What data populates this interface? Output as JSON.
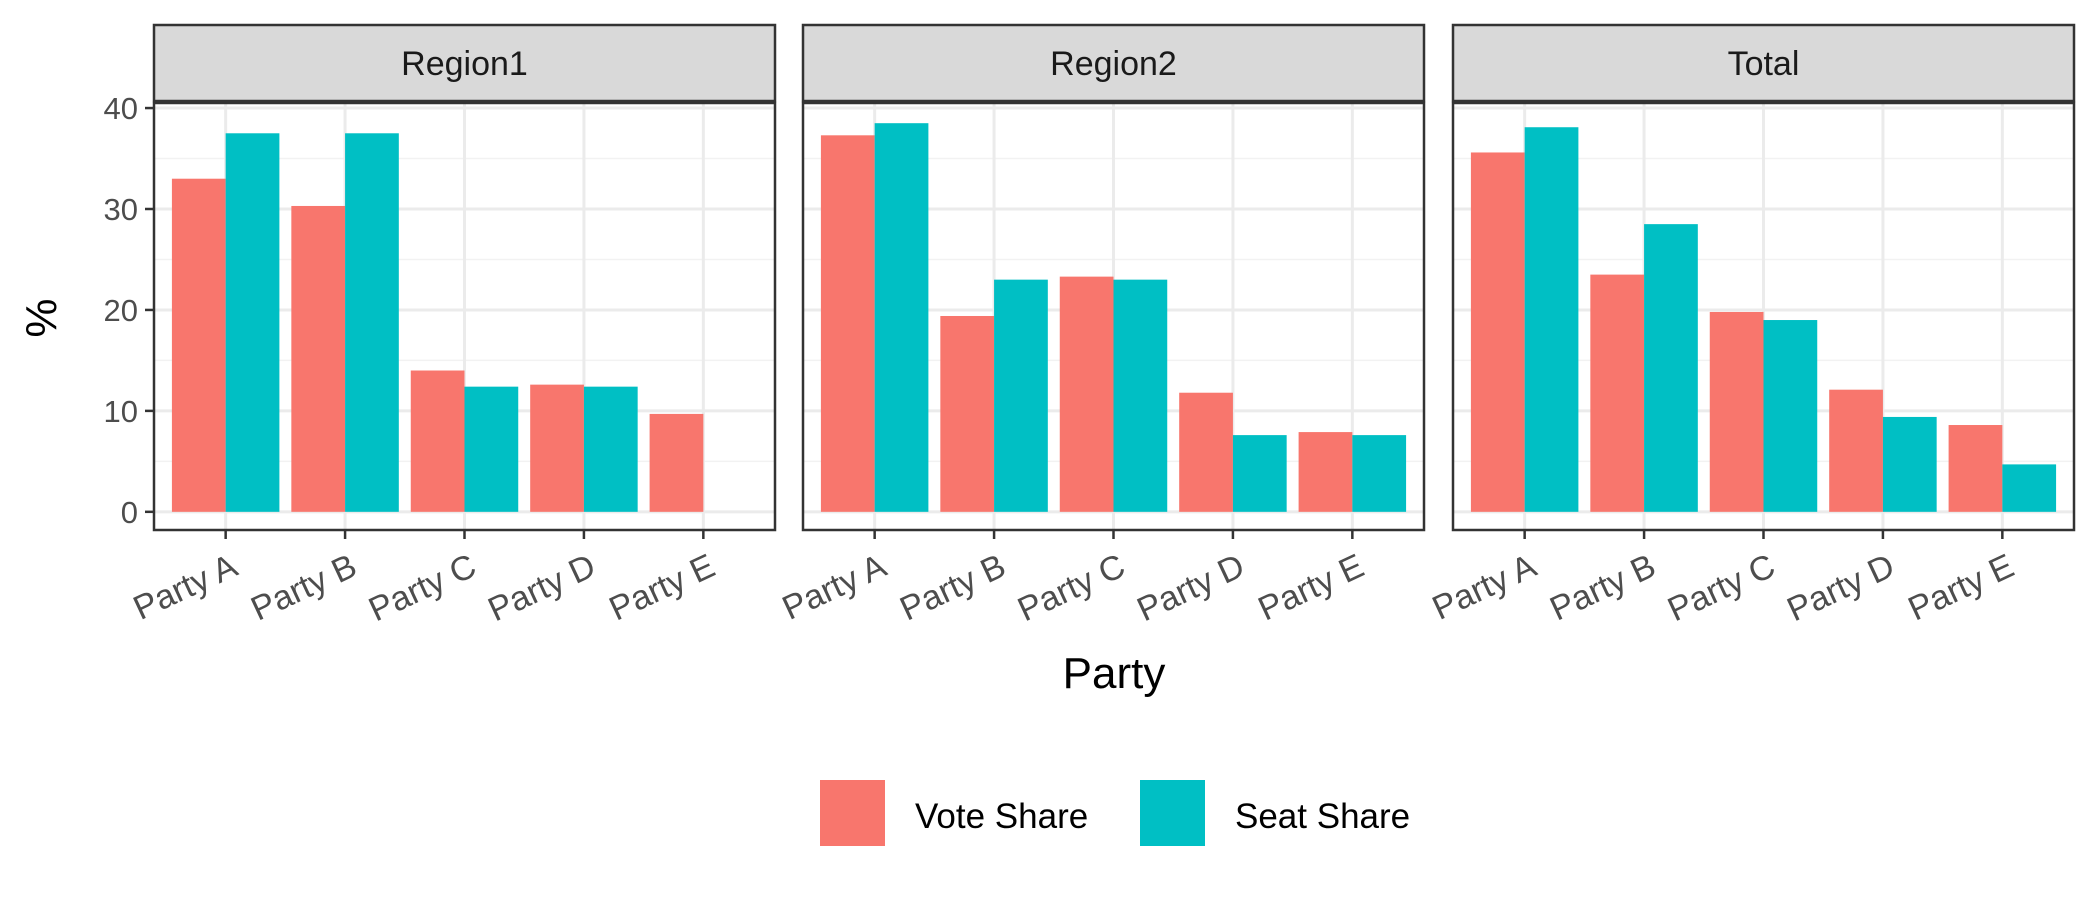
{
  "chart_data": {
    "type": "bar",
    "facets": [
      "Region1",
      "Region2",
      "Total"
    ],
    "categories": [
      "Party A",
      "Party B",
      "Party C",
      "Party D",
      "Party E"
    ],
    "series": [
      {
        "name": "Vote Share",
        "color": "#F8766D",
        "values": {
          "Region1": [
            33.0,
            30.3,
            14.0,
            12.6,
            9.7
          ],
          "Region2": [
            37.3,
            19.4,
            23.3,
            11.8,
            7.9
          ],
          "Total": [
            35.6,
            23.5,
            19.8,
            12.1,
            8.6
          ]
        }
      },
      {
        "name": "Seat Share",
        "color": "#00BFC4",
        "values": {
          "Region1": [
            37.5,
            37.5,
            12.4,
            12.4,
            0
          ],
          "Region2": [
            38.5,
            23.0,
            23.0,
            7.6,
            7.6
          ],
          "Total": [
            38.1,
            28.5,
            19.0,
            9.4,
            4.7
          ]
        }
      }
    ],
    "xlabel": "Party",
    "ylabel": "%",
    "ylim": [
      -1.8,
      40.5
    ],
    "yticks": [
      "0",
      "10",
      "20",
      "30",
      "40"
    ],
    "grid": true,
    "legend_position": "bottom"
  }
}
